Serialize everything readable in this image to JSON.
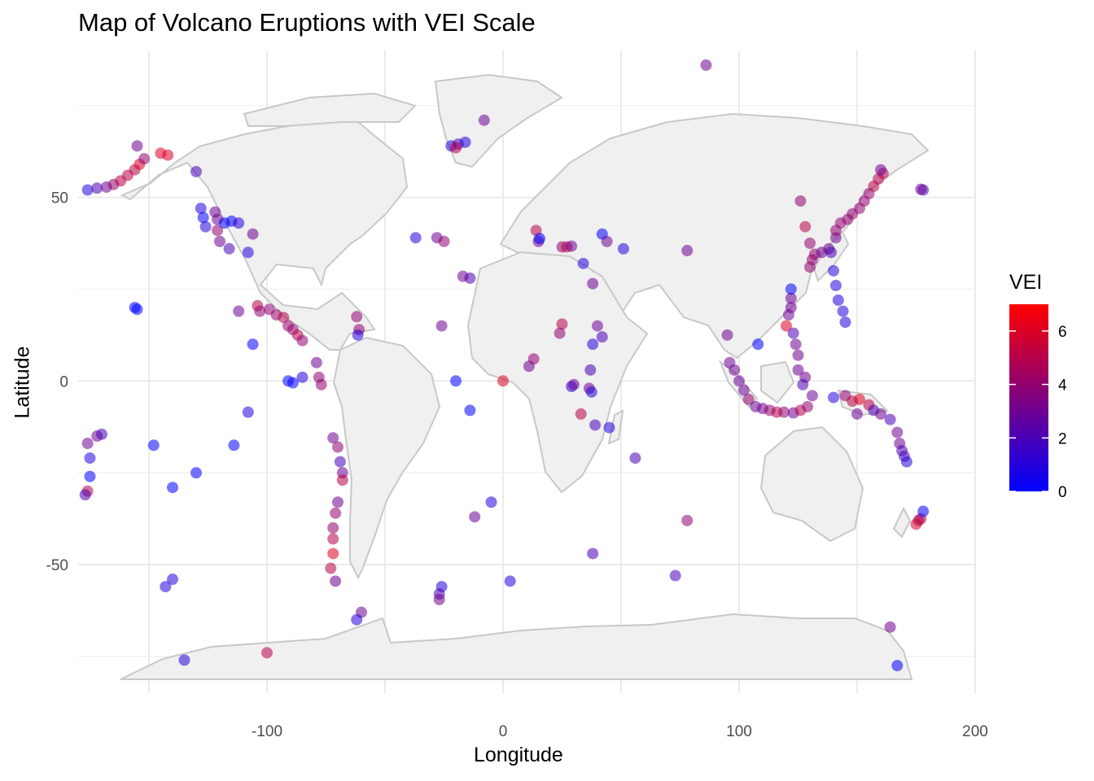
{
  "chart_data": {
    "type": "scatter",
    "title": "Map of Volcano Eruptions with VEI Scale",
    "xlabel": "Longitude",
    "ylabel": "Latitude",
    "xlim": [
      -180,
      200
    ],
    "ylim": [
      -85,
      90
    ],
    "x_ticks": [
      -100,
      0,
      100,
      200
    ],
    "y_ticks": [
      -50,
      0,
      50
    ],
    "grid": true,
    "legend": {
      "title": "VEI",
      "placement": "right",
      "range": [
        0,
        7
      ],
      "ticks": [
        0,
        2,
        4,
        6
      ],
      "low_color": "#0000ff",
      "high_color": "#ff0000"
    },
    "basemap": {
      "land_color": "#f0f0f0",
      "border_color": "#c8c8c8"
    },
    "point_opacity": 0.55,
    "points": [
      [
        -176,
        52,
        1
      ],
      [
        -172,
        52.5,
        2
      ],
      [
        -168,
        52.8,
        3
      ],
      [
        -165,
        53.5,
        4
      ],
      [
        -162,
        54.5,
        5
      ],
      [
        -159,
        56,
        5
      ],
      [
        -156,
        57.5,
        5
      ],
      [
        -154,
        59,
        6
      ],
      [
        -152,
        60.5,
        4
      ],
      [
        -155,
        64,
        3
      ],
      [
        -145,
        62,
        6
      ],
      [
        -142,
        61.5,
        6
      ],
      [
        -130,
        57,
        2
      ],
      [
        -128,
        47,
        1
      ],
      [
        -127,
        44.5,
        0
      ],
      [
        -126,
        42,
        1
      ],
      [
        -122,
        46,
        3
      ],
      [
        -121,
        44,
        3
      ],
      [
        -121,
        41,
        4
      ],
      [
        -120,
        38,
        3
      ],
      [
        -118,
        43,
        0
      ],
      [
        -115,
        43.5,
        0
      ],
      [
        -112,
        43,
        1
      ],
      [
        -116,
        36,
        2
      ],
      [
        -108,
        35,
        1
      ],
      [
        -106,
        40,
        3
      ],
      [
        -112,
        19,
        3
      ],
      [
        -104,
        20.5,
        5
      ],
      [
        -103,
        19,
        4
      ],
      [
        -99,
        19.5,
        4
      ],
      [
        -96,
        18,
        4
      ],
      [
        -93,
        17.3,
        5
      ],
      [
        -91,
        15,
        4
      ],
      [
        -89,
        14,
        4
      ],
      [
        -87,
        12.5,
        5
      ],
      [
        -85,
        11,
        4
      ],
      [
        -106,
        10,
        0
      ],
      [
        -91,
        0,
        0
      ],
      [
        -89,
        -0.5,
        0
      ],
      [
        -85,
        1,
        1
      ],
      [
        -79,
        5,
        3
      ],
      [
        -78,
        1,
        4
      ],
      [
        -77,
        -1,
        4
      ],
      [
        -72,
        -15.5,
        3
      ],
      [
        -70,
        -18,
        4
      ],
      [
        -69,
        -22,
        2
      ],
      [
        -68,
        -25,
        3
      ],
      [
        -68,
        -27,
        5
      ],
      [
        -70,
        -33,
        3
      ],
      [
        -71,
        -36,
        4
      ],
      [
        -72,
        -40,
        4
      ],
      [
        -72,
        -43,
        5
      ],
      [
        -72,
        -47,
        6
      ],
      [
        -73,
        -51,
        5
      ],
      [
        -71,
        -54.5,
        3
      ],
      [
        -62,
        17.5,
        4
      ],
      [
        -61,
        14,
        4
      ],
      [
        -61.5,
        12.5,
        1
      ],
      [
        -60,
        -63,
        3
      ],
      [
        -62,
        -65,
        1
      ],
      [
        -26,
        15,
        3
      ],
      [
        -28,
        39,
        3
      ],
      [
        -25,
        38,
        4
      ],
      [
        -22,
        64,
        1
      ],
      [
        -19,
        64.5,
        2
      ],
      [
        -16,
        65,
        1
      ],
      [
        -20,
        63.5,
        5
      ],
      [
        -14,
        28,
        2
      ],
      [
        -17,
        28.5,
        3
      ],
      [
        -8,
        71,
        3
      ],
      [
        -37,
        39,
        1
      ],
      [
        -20,
        0,
        0
      ],
      [
        -14,
        -8,
        0
      ],
      [
        -12,
        -37,
        3
      ],
      [
        -5,
        -33,
        1
      ],
      [
        0,
        0,
        6
      ],
      [
        3,
        -54.5,
        1
      ],
      [
        -26,
        -56,
        1
      ],
      [
        -27,
        -58,
        2
      ],
      [
        -27,
        -59.5,
        3
      ],
      [
        -155,
        19.5,
        0
      ],
      [
        -156,
        20,
        0
      ],
      [
        -148,
        -17.5,
        0
      ],
      [
        -140,
        -29,
        0
      ],
      [
        -130,
        -25,
        0
      ],
      [
        -140,
        -54,
        1
      ],
      [
        -143,
        -56,
        1
      ],
      [
        -135,
        -76,
        1
      ],
      [
        -114,
        -17.5,
        0
      ],
      [
        -108,
        -8.5,
        1
      ],
      [
        -100,
        -74,
        5
      ],
      [
        -176,
        -17,
        3
      ],
      [
        -172,
        -15,
        3
      ],
      [
        -170,
        -14.5,
        2
      ],
      [
        -175,
        -21,
        1
      ],
      [
        -175,
        -26,
        0
      ],
      [
        -176,
        -30,
        5
      ],
      [
        -177,
        -31,
        2
      ],
      [
        14,
        41,
        5
      ],
      [
        15,
        38,
        3
      ],
      [
        15.5,
        38.8,
        0
      ],
      [
        25,
        36.5,
        4
      ],
      [
        27,
        36.5,
        5
      ],
      [
        29,
        36.7,
        3
      ],
      [
        34,
        32,
        1
      ],
      [
        42,
        40,
        0
      ],
      [
        51,
        36,
        1
      ],
      [
        44,
        38,
        3
      ],
      [
        38,
        26.5,
        3
      ],
      [
        40,
        15,
        3
      ],
      [
        42,
        12,
        2
      ],
      [
        38,
        10,
        1
      ],
      [
        37,
        3,
        2
      ],
      [
        36.5,
        -2,
        3
      ],
      [
        37.5,
        -3,
        1
      ],
      [
        29,
        -1.5,
        1
      ],
      [
        30,
        -1,
        3
      ],
      [
        11,
        4,
        3
      ],
      [
        13,
        6,
        4
      ],
      [
        25,
        15.5,
        5
      ],
      [
        24,
        13,
        4
      ],
      [
        39,
        -12,
        2
      ],
      [
        45,
        -12.7,
        1
      ],
      [
        33,
        -9,
        5
      ],
      [
        56,
        -21,
        2
      ],
      [
        38,
        -47,
        2
      ],
      [
        78,
        -38,
        4
      ],
      [
        73,
        -53,
        2
      ],
      [
        86,
        86,
        3
      ],
      [
        78,
        35.5,
        3
      ],
      [
        108,
        10,
        0
      ],
      [
        95,
        12.5,
        3
      ],
      [
        96,
        5,
        3
      ],
      [
        98,
        3,
        3
      ],
      [
        100,
        0,
        3
      ],
      [
        102,
        -2.5,
        3
      ],
      [
        104,
        -5,
        4
      ],
      [
        107,
        -7,
        3
      ],
      [
        110,
        -7.5,
        3
      ],
      [
        113,
        -8,
        4
      ],
      [
        116,
        -8.5,
        5
      ],
      [
        119,
        -8.5,
        4
      ],
      [
        123,
        -8.7,
        3
      ],
      [
        126,
        -8,
        5
      ],
      [
        129,
        -7,
        4
      ],
      [
        131,
        -4,
        3
      ],
      [
        128,
        1,
        3
      ],
      [
        127,
        -1,
        2
      ],
      [
        125,
        3,
        3
      ],
      [
        125,
        7,
        3
      ],
      [
        124,
        10,
        3
      ],
      [
        123,
        13,
        2
      ],
      [
        120,
        15,
        6
      ],
      [
        121,
        18,
        3
      ],
      [
        122,
        20,
        3
      ],
      [
        122,
        22.5,
        3
      ],
      [
        122,
        25,
        0
      ],
      [
        126,
        49,
        4
      ],
      [
        128,
        42,
        5
      ],
      [
        130,
        37.5,
        4
      ],
      [
        130,
        31,
        4
      ],
      [
        131,
        33,
        4
      ],
      [
        132,
        34.5,
        4
      ],
      [
        135,
        35,
        3
      ],
      [
        138,
        36,
        3
      ],
      [
        139,
        35,
        2
      ],
      [
        140,
        30,
        1
      ],
      [
        141,
        26,
        1
      ],
      [
        142,
        22,
        1
      ],
      [
        144,
        19,
        1
      ],
      [
        145,
        16,
        1
      ],
      [
        141,
        39,
        3
      ],
      [
        141,
        41,
        4
      ],
      [
        143,
        43,
        4
      ],
      [
        146,
        44,
        4
      ],
      [
        148,
        45.5,
        4
      ],
      [
        151,
        47,
        4
      ],
      [
        153,
        49,
        4
      ],
      [
        155,
        51,
        4
      ],
      [
        157,
        53,
        5
      ],
      [
        159,
        55,
        5
      ],
      [
        161,
        56.5,
        5
      ],
      [
        160,
        57.5,
        3
      ],
      [
        178,
        52,
        2
      ],
      [
        177,
        52.2,
        3
      ],
      [
        140,
        -4.5,
        1
      ],
      [
        145,
        -4,
        4
      ],
      [
        148,
        -5.5,
        5
      ],
      [
        151,
        -5,
        6
      ],
      [
        155,
        -6.5,
        5
      ],
      [
        157,
        -8,
        2
      ],
      [
        160,
        -9,
        3
      ],
      [
        164,
        -10.5,
        2
      ],
      [
        167,
        -14,
        3
      ],
      [
        168,
        -17,
        3
      ],
      [
        169,
        -19,
        2
      ],
      [
        170,
        -20.5,
        2
      ],
      [
        171,
        -22,
        1
      ],
      [
        176,
        -38,
        4
      ],
      [
        175,
        -39,
        6
      ],
      [
        177,
        -37.5,
        5
      ],
      [
        178,
        -35.5,
        0
      ],
      [
        167,
        -77.5,
        0
      ],
      [
        164,
        -67,
        3
      ],
      [
        150,
        -9,
        3
      ]
    ]
  }
}
